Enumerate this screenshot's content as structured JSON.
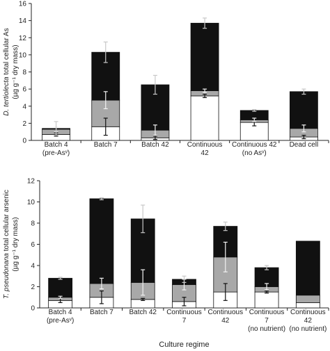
{
  "colors": {
    "black": "#111111",
    "gray": "#a8a8a8",
    "white": "#ffffff",
    "axis": "#222222",
    "error_bar": "#c8c8c8"
  },
  "chart_data": [
    {
      "type": "bar",
      "stacked": true,
      "ylabel_species": "D. tertiolecta",
      "ylabel_rest": " total cellular As",
      "ylabel_line2": "(µg g⁻¹ dry mass)",
      "xlabel": "",
      "ylim": [
        0,
        16
      ],
      "yticks": [
        0,
        2,
        4,
        6,
        8,
        10,
        12,
        14,
        16
      ],
      "grid": false,
      "categories": [
        [
          "Batch 4",
          "(pre-Asᵛ)"
        ],
        [
          "Batch 7"
        ],
        [
          "Batch 42"
        ],
        [
          "Continuous",
          "42"
        ],
        [
          "Continuous 42",
          "(no Asᵛ)"
        ],
        [
          "Dead cell"
        ]
      ],
      "series": [
        {
          "color": "white",
          "values": [
            0.7,
            1.6,
            0.3,
            5.2,
            2.1,
            0.4
          ],
          "errors": [
            0.2,
            1.0,
            0.2,
            0.2,
            0.4,
            0.2
          ]
        },
        {
          "color": "gray",
          "values": [
            0.6,
            3.1,
            0.9,
            0.6,
            0.3,
            1.0
          ],
          "errors": [
            0.3,
            1.0,
            0.6,
            0.2,
            0.2,
            0.4
          ]
        },
        {
          "color": "black",
          "values": [
            0.1,
            5.6,
            5.3,
            7.9,
            1.1,
            4.3
          ],
          "errors": [
            0.8,
            1.2,
            1.1,
            0.6,
            0.1,
            0.3
          ]
        }
      ]
    },
    {
      "type": "bar",
      "stacked": true,
      "ylabel_species": "T. pseudonana",
      "ylabel_rest": " total cellular arsenic",
      "ylabel_line2": "(µg g⁻¹ dry mass)",
      "xlabel": "Culture regime",
      "ylim": [
        0,
        12
      ],
      "yticks": [
        0,
        2,
        4,
        6,
        8,
        10,
        12
      ],
      "grid": false,
      "categories": [
        [
          "Batch 4",
          "(pre-Asᵛ)"
        ],
        [
          "Batch 7"
        ],
        [
          "Batch 42"
        ],
        [
          "Continuous",
          "7"
        ],
        [
          "Continuous",
          "42"
        ],
        [
          "Continuous",
          "7",
          "(no nutrient)"
        ],
        [
          "Continuous",
          "42",
          "(no nutrient)"
        ]
      ],
      "series": [
        {
          "color": "white",
          "values": [
            0.7,
            1.0,
            0.8,
            0.6,
            1.5,
            1.5,
            0.5
          ],
          "errors": [
            0.2,
            0.6,
            0.1,
            0.4,
            0.8,
            0.1,
            0
          ]
        },
        {
          "color": "gray",
          "values": [
            0.3,
            1.3,
            1.6,
            1.6,
            3.3,
            0.5,
            0.7
          ],
          "errors": [
            0.1,
            0.5,
            1.2,
            0.5,
            1.4,
            0.3,
            0
          ]
        },
        {
          "color": "black",
          "values": [
            1.8,
            8.0,
            6.0,
            0.5,
            2.9,
            1.8,
            5.1
          ],
          "errors": [
            0.1,
            0.1,
            1.3,
            0.3,
            0.4,
            0.2,
            0
          ]
        }
      ]
    }
  ]
}
